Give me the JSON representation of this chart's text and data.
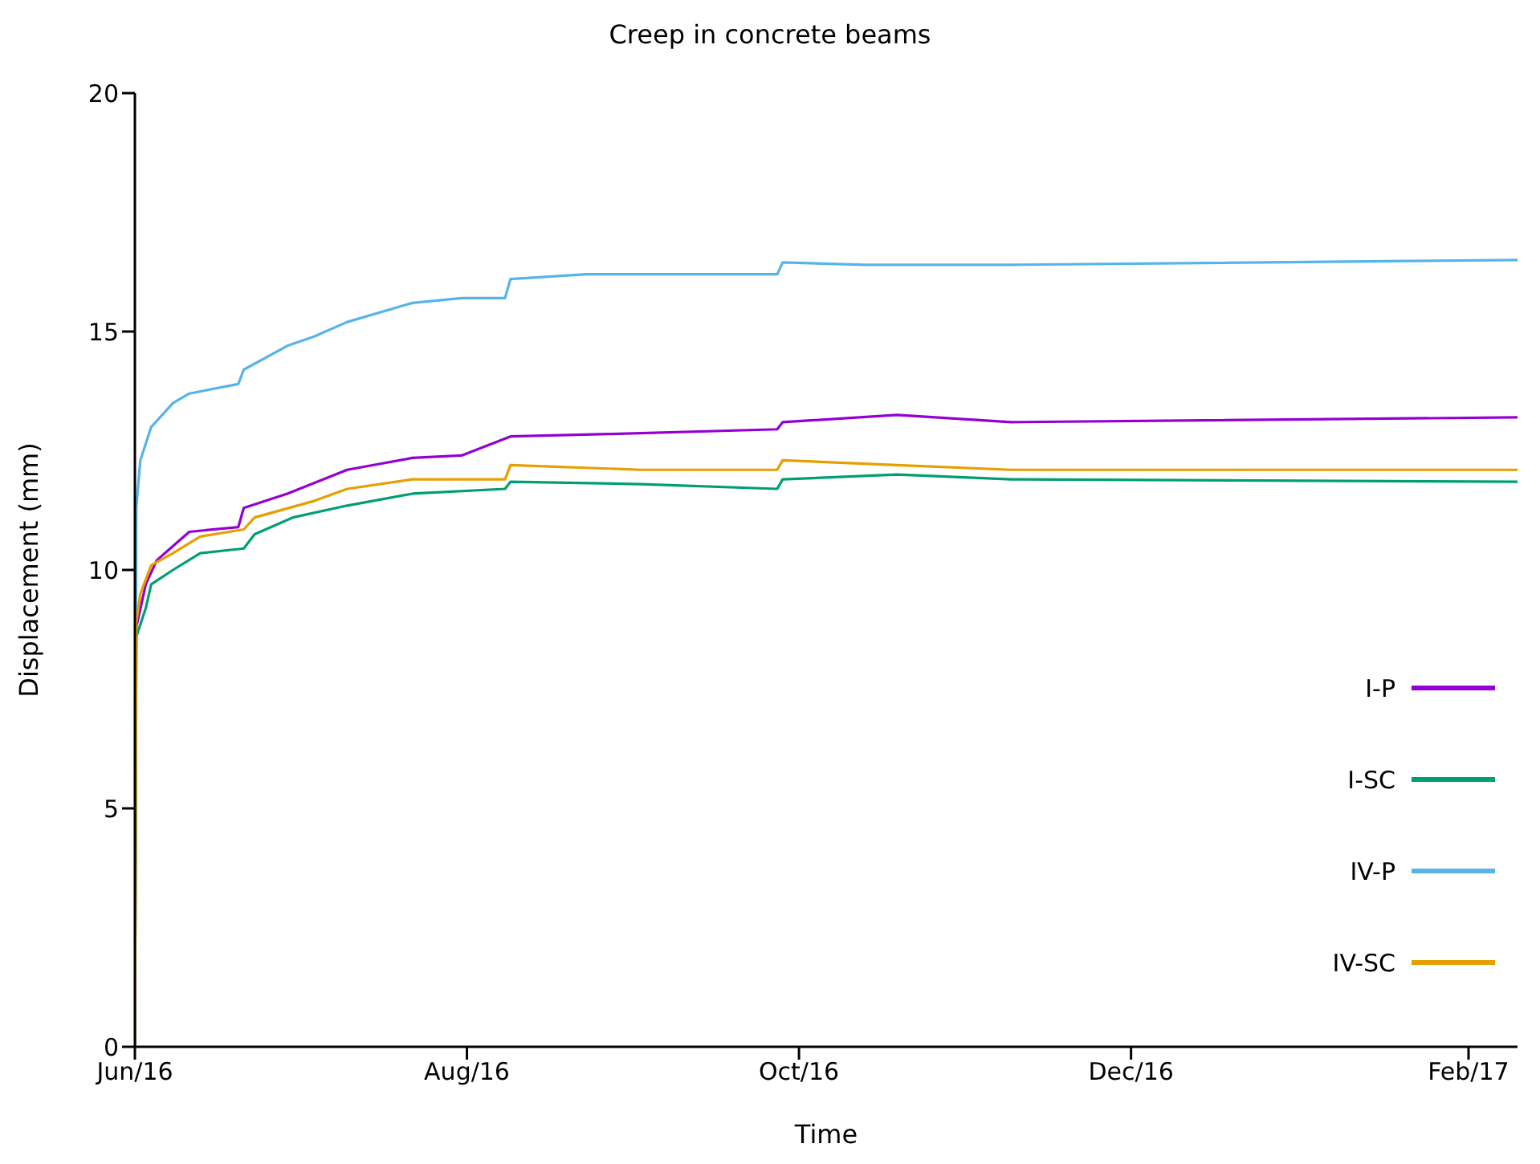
{
  "chart_data": {
    "type": "line",
    "title": "Creep in concrete beams",
    "xlabel": "Time",
    "ylabel": "Displacement (mm)",
    "xlim": [
      "2016-06-01",
      "2017-02-10"
    ],
    "xticks": [
      {
        "value": "2016-06-01",
        "label": "Jun/16"
      },
      {
        "value": "2016-08-01",
        "label": "Aug/16"
      },
      {
        "value": "2016-10-01",
        "label": "Oct/16"
      },
      {
        "value": "2016-12-01",
        "label": "Dec/16"
      },
      {
        "value": "2017-02-01",
        "label": "Feb/17"
      }
    ],
    "ylim": [
      0,
      20
    ],
    "yticks": [
      0,
      5,
      10,
      15,
      20
    ],
    "grid": false,
    "legend": "right",
    "marker": "none",
    "line_style": "solid",
    "series": [
      {
        "name": "I-P",
        "color": "#9400d3",
        "x": [
          "2016-06-01",
          "2016-06-01T06:00",
          "2016-06-03",
          "2016-06-05",
          "2016-06-08",
          "2016-06-11",
          "2016-06-20",
          "2016-06-21",
          "2016-06-29",
          "2016-07-10",
          "2016-07-22",
          "2016-07-31",
          "2016-08-09",
          "2016-08-27",
          "2016-09-27",
          "2016-09-28",
          "2016-10-19",
          "2016-11-09",
          "2017-02-10"
        ],
        "values": [
          0,
          8.8,
          9.7,
          10.2,
          10.5,
          10.8,
          10.9,
          11.3,
          11.6,
          12.1,
          12.35,
          12.4,
          12.8,
          12.85,
          12.95,
          13.1,
          13.25,
          13.1,
          13.2
        ]
      },
      {
        "name": "I-SC",
        "color": "#009e73",
        "x": [
          "2016-06-01",
          "2016-06-01T06:00",
          "2016-06-03",
          "2016-06-04",
          "2016-06-08",
          "2016-06-13",
          "2016-06-21",
          "2016-06-23",
          "2016-06-30",
          "2016-07-10",
          "2016-07-22",
          "2016-08-08",
          "2016-08-09",
          "2016-09-02",
          "2016-09-27",
          "2016-09-28",
          "2016-10-19",
          "2016-11-09",
          "2017-02-10"
        ],
        "values": [
          0,
          8.6,
          9.2,
          9.7,
          10.0,
          10.35,
          10.45,
          10.75,
          11.1,
          11.35,
          11.6,
          11.7,
          11.85,
          11.8,
          11.7,
          11.9,
          12.0,
          11.9,
          11.85
        ]
      },
      {
        "name": "IV-P",
        "color": "#56b4e9",
        "x": [
          "2016-06-01",
          "2016-06-01T06:00",
          "2016-06-02",
          "2016-06-04",
          "2016-06-08",
          "2016-06-11",
          "2016-06-20",
          "2016-06-21",
          "2016-06-29",
          "2016-07-04",
          "2016-07-10",
          "2016-07-22",
          "2016-07-31",
          "2016-08-08",
          "2016-08-09",
          "2016-08-23",
          "2016-09-27",
          "2016-09-28",
          "2016-10-13",
          "2016-11-09",
          "2017-02-10"
        ],
        "values": [
          0,
          11.3,
          12.3,
          13.0,
          13.5,
          13.7,
          13.9,
          14.2,
          14.7,
          14.9,
          15.2,
          15.6,
          15.7,
          15.7,
          16.1,
          16.2,
          16.2,
          16.45,
          16.4,
          16.4,
          16.5
        ]
      },
      {
        "name": "IV-SC",
        "color": "#e69f00",
        "x": [
          "2016-06-01",
          "2016-06-01T06:00",
          "2016-06-02",
          "2016-06-04",
          "2016-06-08",
          "2016-06-13",
          "2016-06-21",
          "2016-06-23",
          "2016-07-04",
          "2016-07-10",
          "2016-07-22",
          "2016-08-08",
          "2016-08-09",
          "2016-09-02",
          "2016-09-27",
          "2016-09-28",
          "2016-10-19",
          "2016-11-09",
          "2017-02-10"
        ],
        "values": [
          0,
          8.9,
          9.5,
          10.1,
          10.35,
          10.7,
          10.85,
          11.1,
          11.45,
          11.7,
          11.9,
          11.9,
          12.2,
          12.1,
          12.1,
          12.3,
          12.2,
          12.1,
          12.1
        ]
      }
    ]
  }
}
